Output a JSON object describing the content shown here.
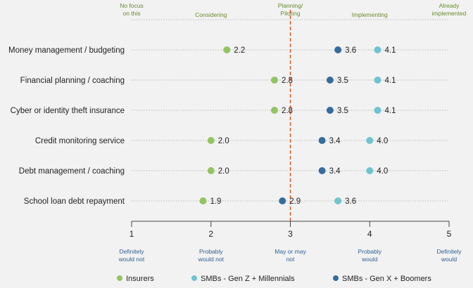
{
  "chart_data": {
    "type": "scatter",
    "xlim": [
      1,
      5
    ],
    "x_ticks": [
      1,
      2,
      3,
      4,
      5
    ],
    "x_tick_labels": [
      [
        "Definitely",
        "would not"
      ],
      [
        "Probably",
        "would not"
      ],
      [
        "May or may",
        "not"
      ],
      [
        "Probably",
        "would"
      ],
      [
        "Definitely",
        "would"
      ]
    ],
    "top_labels": [
      {
        "x": 1,
        "lines": [
          "No focus",
          "on this"
        ]
      },
      {
        "x": 2,
        "lines": [
          "Considering"
        ]
      },
      {
        "x": 3,
        "lines": [
          "Planning/",
          "Piloting"
        ]
      },
      {
        "x": 4,
        "lines": [
          "Implementing"
        ]
      },
      {
        "x": 5,
        "lines": [
          "Already",
          "implemented"
        ]
      }
    ],
    "reference_line_x": 3,
    "categories": [
      "Money management / budgeting",
      "Financial planning / coaching",
      "Cyber or identity theft insurance",
      "Credit monitoring service",
      "Debt management / coaching",
      "School loan debt repayment"
    ],
    "series": [
      {
        "name": "Insurers",
        "color": "#93c462",
        "values": [
          2.2,
          2.8,
          2.8,
          2.0,
          2.0,
          1.9
        ]
      },
      {
        "name": "SMBs - Gen Z + Millennials",
        "color": "#6fc4cf",
        "values": [
          4.1,
          4.1,
          4.1,
          4.0,
          4.0,
          3.6
        ]
      },
      {
        "name": "SMBs - Gen X + Boomers",
        "color": "#356c9e",
        "values": [
          3.6,
          3.5,
          3.5,
          3.4,
          3.4,
          2.9
        ]
      }
    ],
    "legend_position": "bottom"
  },
  "colors": {
    "reference_line": "#d9531e",
    "grid": "#a6a6a6",
    "top_label": "#6a8a2e",
    "tick_desc": "#2f5f8f"
  }
}
